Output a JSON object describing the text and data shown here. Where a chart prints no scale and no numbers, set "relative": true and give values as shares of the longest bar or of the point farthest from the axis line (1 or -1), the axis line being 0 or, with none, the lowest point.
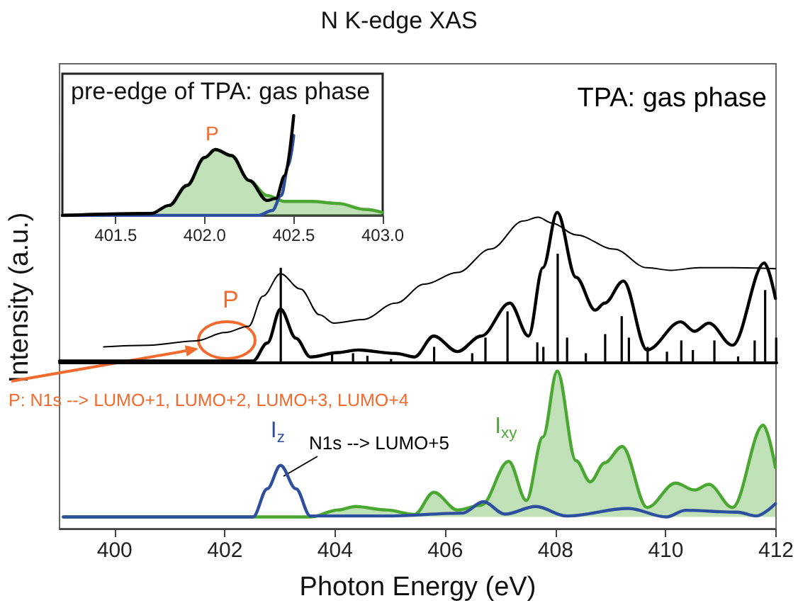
{
  "chart_data": [
    {
      "type": "line",
      "title": "N K-edge XAS",
      "xlabel": "Photon Energy (eV)",
      "ylabel": "Intensity (a.u.)",
      "relative": true,
      "xlim": [
        399,
        412
      ],
      "xticks": [
        400,
        402,
        404,
        406,
        408,
        410,
        412
      ],
      "annotations": [
        "TPA: gas phase",
        "P",
        "P: N1s --> LUMO+1, LUMO+2, LUMO+3, LUMO+4",
        "N1s --> LUMO+5"
      ],
      "series": [
        {
          "color": "#000000",
          "x": [
            399.8,
            400.62,
            401.48,
            402.0,
            402.43,
            402.69,
            403.01,
            403.37,
            403.72,
            403.98,
            404.5,
            405.1,
            405.62,
            406.22,
            406.82,
            407.42,
            407.68,
            407.94,
            408.37,
            409.06,
            409.66,
            410.09,
            410.61,
            411.21,
            411.99
          ],
          "values": [
            0.575,
            0.58,
            0.594,
            0.62,
            0.64,
            0.735,
            0.806,
            0.758,
            0.676,
            0.65,
            0.661,
            0.713,
            0.773,
            0.81,
            0.884,
            0.973,
            0.985,
            0.966,
            0.929,
            0.884,
            0.825,
            0.817,
            0.825,
            0.825,
            0.822
          ]
        },
        {
          "color": "#000000",
          "x": [
            399.0,
            402.51,
            402.77,
            403.01,
            403.29,
            403.55,
            404.06,
            404.41,
            405.1,
            405.44,
            405.79,
            406.22,
            406.65,
            407.17,
            407.51,
            407.77,
            408.03,
            408.37,
            408.72,
            408.89,
            409.23,
            409.66,
            410.27,
            410.52,
            410.78,
            411.21,
            411.79,
            411.99
          ],
          "values": [
            0.53,
            0.53,
            0.587,
            0.694,
            0.602,
            0.543,
            0.557,
            0.565,
            0.554,
            0.543,
            0.609,
            0.56,
            0.609,
            0.713,
            0.609,
            0.825,
            1.0,
            0.795,
            0.691,
            0.713,
            0.783,
            0.565,
            0.654,
            0.624,
            0.65,
            0.58,
            0.84,
            0.728
          ]
        },
        {
          "type": "area",
          "name": "I$_{xy}$",
          "color": "#4aa832",
          "x": [
            399.07,
            403.55,
            404.06,
            404.37,
            404.93,
            405.44,
            405.79,
            406.22,
            406.65,
            407.15,
            407.47,
            407.77,
            408.03,
            408.37,
            408.63,
            408.89,
            409.21,
            409.66,
            410.18,
            410.52,
            410.78,
            411.21,
            411.77,
            411.99
          ],
          "values": [
            0.037,
            0.037,
            0.059,
            0.07,
            0.059,
            0.045,
            0.115,
            0.059,
            0.074,
            0.213,
            0.089,
            0.29,
            0.498,
            0.215,
            0.148,
            0.208,
            0.26,
            0.067,
            0.144,
            0.122,
            0.14,
            0.067,
            0.327,
            0.193
          ]
        },
        {
          "name": "I$_{z}$",
          "color": "#2e4fa0",
          "x": [
            399.07,
            402.51,
            402.77,
            403.01,
            403.29,
            403.55,
            404.93,
            406.31,
            406.69,
            407.08,
            407.64,
            408.2,
            409.32,
            410.01,
            410.36,
            411.3,
            411.64,
            411.99
          ],
          "values": [
            0.037,
            0.037,
            0.126,
            0.2,
            0.126,
            0.04,
            0.04,
            0.049,
            0.085,
            0.046,
            0.07,
            0.04,
            0.064,
            0.037,
            0.058,
            0.052,
            0.04,
            0.079
          ]
        }
      ]
    },
    {
      "type": "line",
      "title": "pre-edge of TPA: gas phase",
      "relative": true,
      "xlim": [
        401.2,
        403.0
      ],
      "xticks": [
        401.5,
        {
          "value": 402,
          "label": "402.0"
        },
        402.5,
        {
          "value": 403,
          "label": "403.0"
        }
      ],
      "annotations": [
        "P"
      ],
      "series": [
        {
          "type": "area",
          "color": "#4aa832",
          "x": [
            401.2,
            401.7,
            401.8,
            401.9,
            402.0,
            402.06,
            402.15,
            402.25,
            402.35,
            402.45,
            402.6,
            402.75,
            402.9,
            403.0
          ],
          "values": [
            0,
            0.02,
            0.1,
            0.3,
            0.58,
            0.66,
            0.6,
            0.35,
            0.2,
            0.14,
            0.14,
            0.12,
            0.06,
            0.03
          ]
        },
        {
          "color": "#2e4fa0",
          "x": [
            401.2,
            402.3,
            402.38,
            402.43,
            402.47,
            402.5
          ],
          "values": [
            0,
            0,
            0.05,
            0.2,
            0.5,
            0.8
          ]
        },
        {
          "color": "#000000",
          "x": [
            401.2,
            401.7,
            401.8,
            401.9,
            402.0,
            402.06,
            402.15,
            402.25,
            402.35,
            402.4,
            402.45,
            402.5
          ],
          "values": [
            0,
            0.02,
            0.1,
            0.3,
            0.58,
            0.66,
            0.6,
            0.35,
            0.15,
            0.17,
            0.4,
            1.0
          ]
        }
      ]
    },
    {
      "type": "bar",
      "relative": true,
      "xlim": [
        399,
        412
      ],
      "series": [
        {
          "color": "#000000",
          "x": [
            403.01,
            403.94,
            404.32,
            404.58,
            405.01,
            405.79,
            406.48,
            406.72,
            407.12,
            407.66,
            407.77,
            408.03,
            408.2,
            408.54,
            408.89,
            409.19,
            409.32,
            409.66,
            410.01,
            410.27,
            410.48,
            410.87,
            411.3,
            411.6,
            411.79,
            411.99
          ],
          "values": [
            0.871,
            0.079,
            0.088,
            0.064,
            0.035,
            0.146,
            0.088,
            0.231,
            0.471,
            0.187,
            0.146,
            1.0,
            0.231,
            0.088,
            0.263,
            0.427,
            0.231,
            0.146,
            0.102,
            0.205,
            0.117,
            0.205,
            0.058,
            0.205,
            0.667,
            0.231
          ]
        }
      ]
    }
  ]
}
